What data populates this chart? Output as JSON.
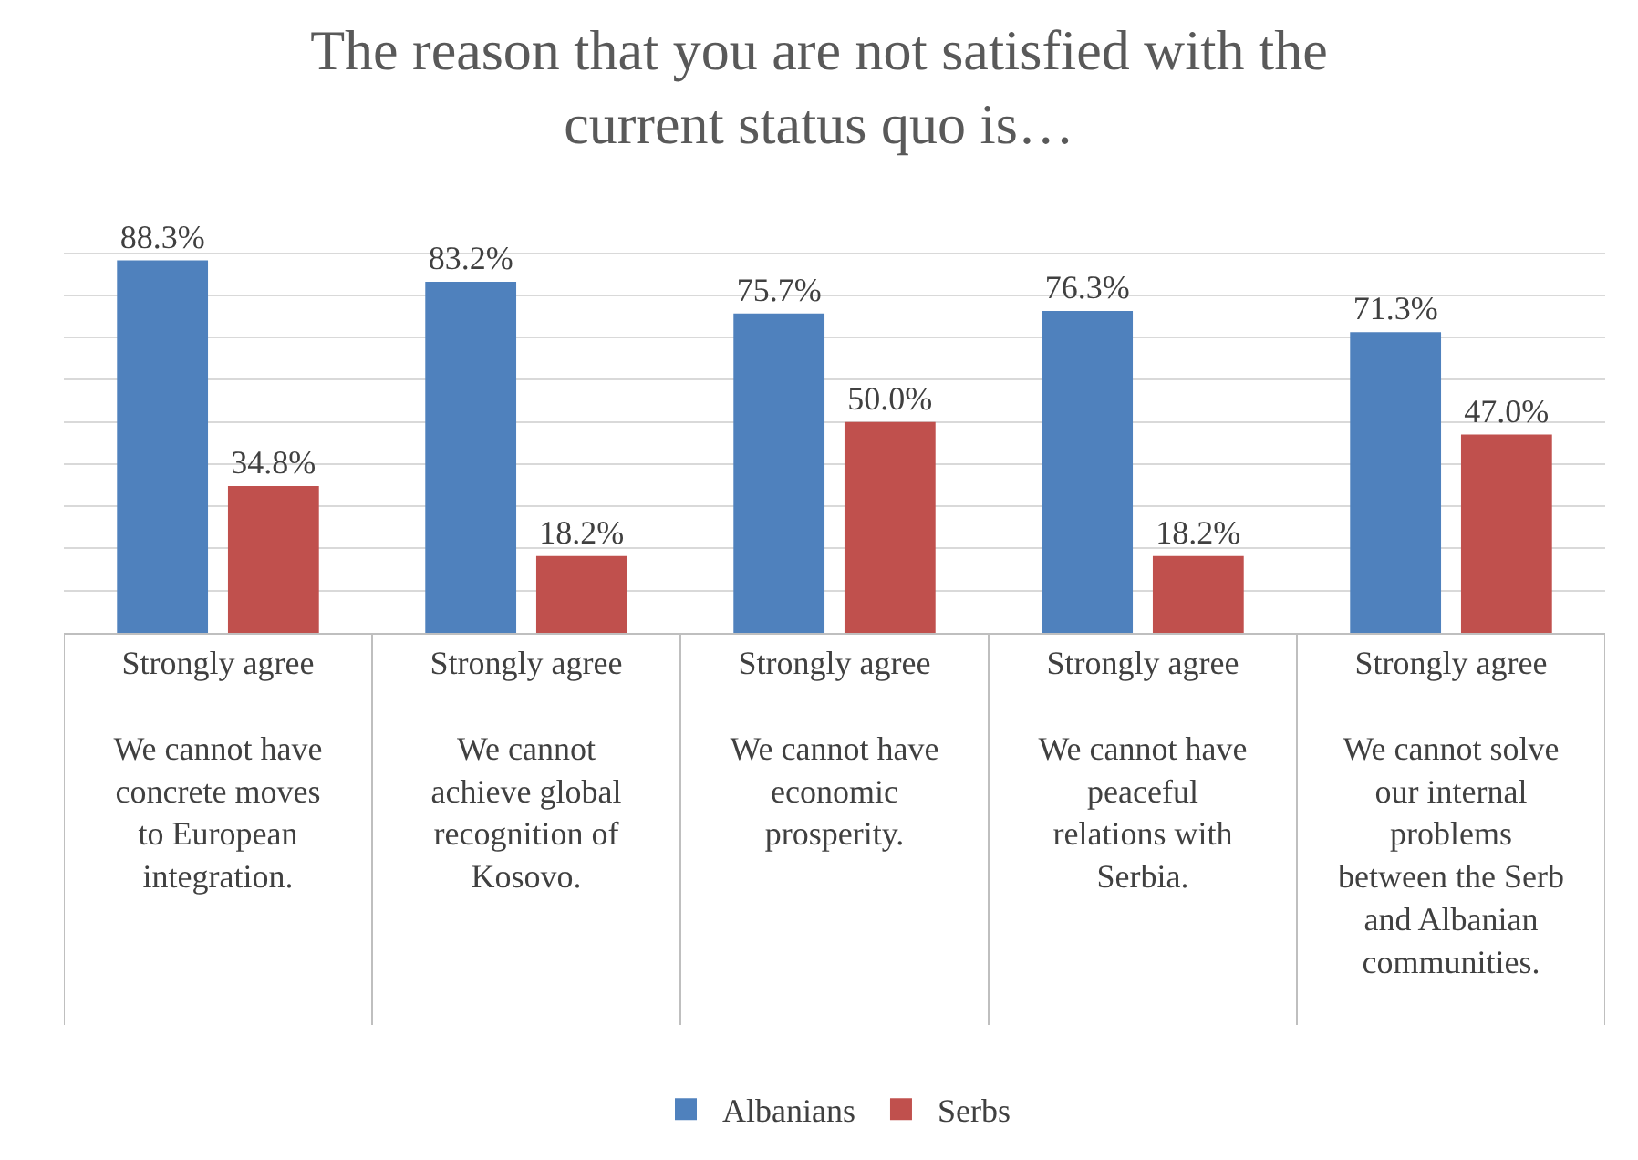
{
  "chart_data": {
    "type": "bar",
    "title": "The reason that you are not satisfied with the\ncurrent status quo is…",
    "categories": [
      "Strongly agree\nWe cannot have\nconcrete moves\nto European\nintegration.",
      "Strongly agree\nWe cannot\nachieve global\nrecognition of\nKosovo.",
      "Strongly agree\nWe cannot have\neconomic\nprosperity.",
      "Strongly agree\nWe cannot have\npeaceful\nrelations with\nSerbia.",
      "Strongly agree\nWe cannot solve\nour internal\nproblems\nbetween the Serb\nand Albanian\ncommunities."
    ],
    "series": [
      {
        "name": "Albanians",
        "color": "#4f81bd",
        "values": [
          88.3,
          83.2,
          75.7,
          76.3,
          71.3
        ],
        "value_labels": [
          "88.3%",
          "83.2%",
          "75.7%",
          "76.3%",
          "71.3%"
        ]
      },
      {
        "name": "Serbs",
        "color": "#c0504d",
        "values": [
          34.8,
          18.2,
          50.0,
          18.2,
          47.0
        ],
        "value_labels": [
          "34.8%",
          "18.2%",
          "50.0%",
          "18.2%",
          "47.0%"
        ]
      }
    ],
    "tick_labels": "x",
    "grid": "y",
    "legend": "bottom"
  }
}
